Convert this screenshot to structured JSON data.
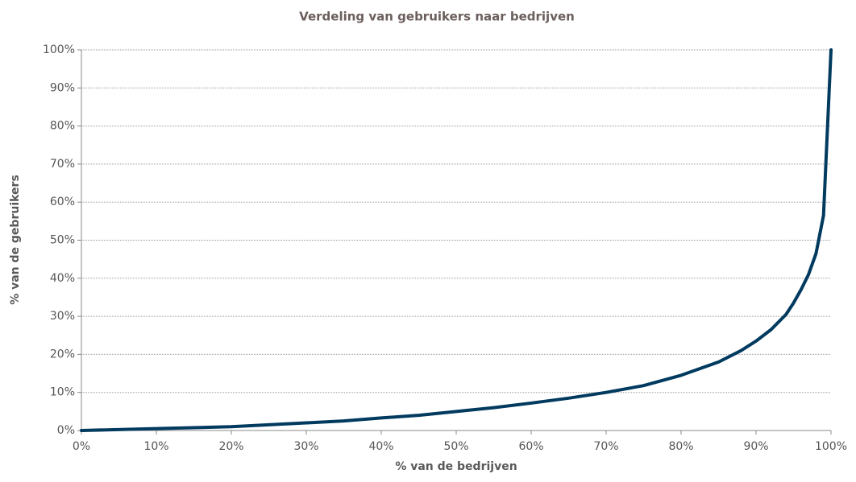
{
  "chart_data": {
    "type": "line",
    "title": "Verdeling van gebruikers naar bedrijven",
    "x_label": "% van de bedrijven",
    "y_label": "% van de gebruikers",
    "x": [
      0,
      10,
      20,
      30,
      35,
      40,
      45,
      50,
      55,
      60,
      65,
      70,
      75,
      80,
      85,
      88,
      90,
      92,
      94,
      95,
      96,
      97,
      98,
      99,
      100
    ],
    "values": [
      0,
      0.5,
      1,
      2,
      2.5,
      3.3,
      4,
      5,
      6,
      7.2,
      8.5,
      10,
      11.8,
      14.5,
      18,
      21,
      23.5,
      26.5,
      30.5,
      33.5,
      37,
      41,
      46.5,
      56.5,
      100
    ],
    "color": "#003a5f",
    "xlim": [
      0,
      100
    ],
    "ylim": [
      0,
      100
    ],
    "xticks": [
      {
        "value": 0,
        "label": "0%"
      },
      {
        "value": 10,
        "label": "10%"
      },
      {
        "value": 20,
        "label": "20%"
      },
      {
        "value": 30,
        "label": "30%"
      },
      {
        "value": 40,
        "label": "40%"
      },
      {
        "value": 50,
        "label": "50%"
      },
      {
        "value": 60,
        "label": "60%"
      },
      {
        "value": 70,
        "label": "70%"
      },
      {
        "value": 80,
        "label": "80%"
      },
      {
        "value": 90,
        "label": "90%"
      },
      {
        "value": 100,
        "label": "100%"
      }
    ],
    "yticks": [
      {
        "value": 0,
        "label": "0%"
      },
      {
        "value": 10,
        "label": "10%"
      },
      {
        "value": 20,
        "label": "20%"
      },
      {
        "value": 30,
        "label": "30%"
      },
      {
        "value": 40,
        "label": "40%"
      },
      {
        "value": 50,
        "label": "50%"
      },
      {
        "value": 60,
        "label": "60%"
      },
      {
        "value": 70,
        "label": "70%"
      },
      {
        "value": 80,
        "label": "80%"
      },
      {
        "value": 90,
        "label": "90%"
      },
      {
        "value": 100,
        "label": "100%"
      }
    ],
    "grid": true
  }
}
